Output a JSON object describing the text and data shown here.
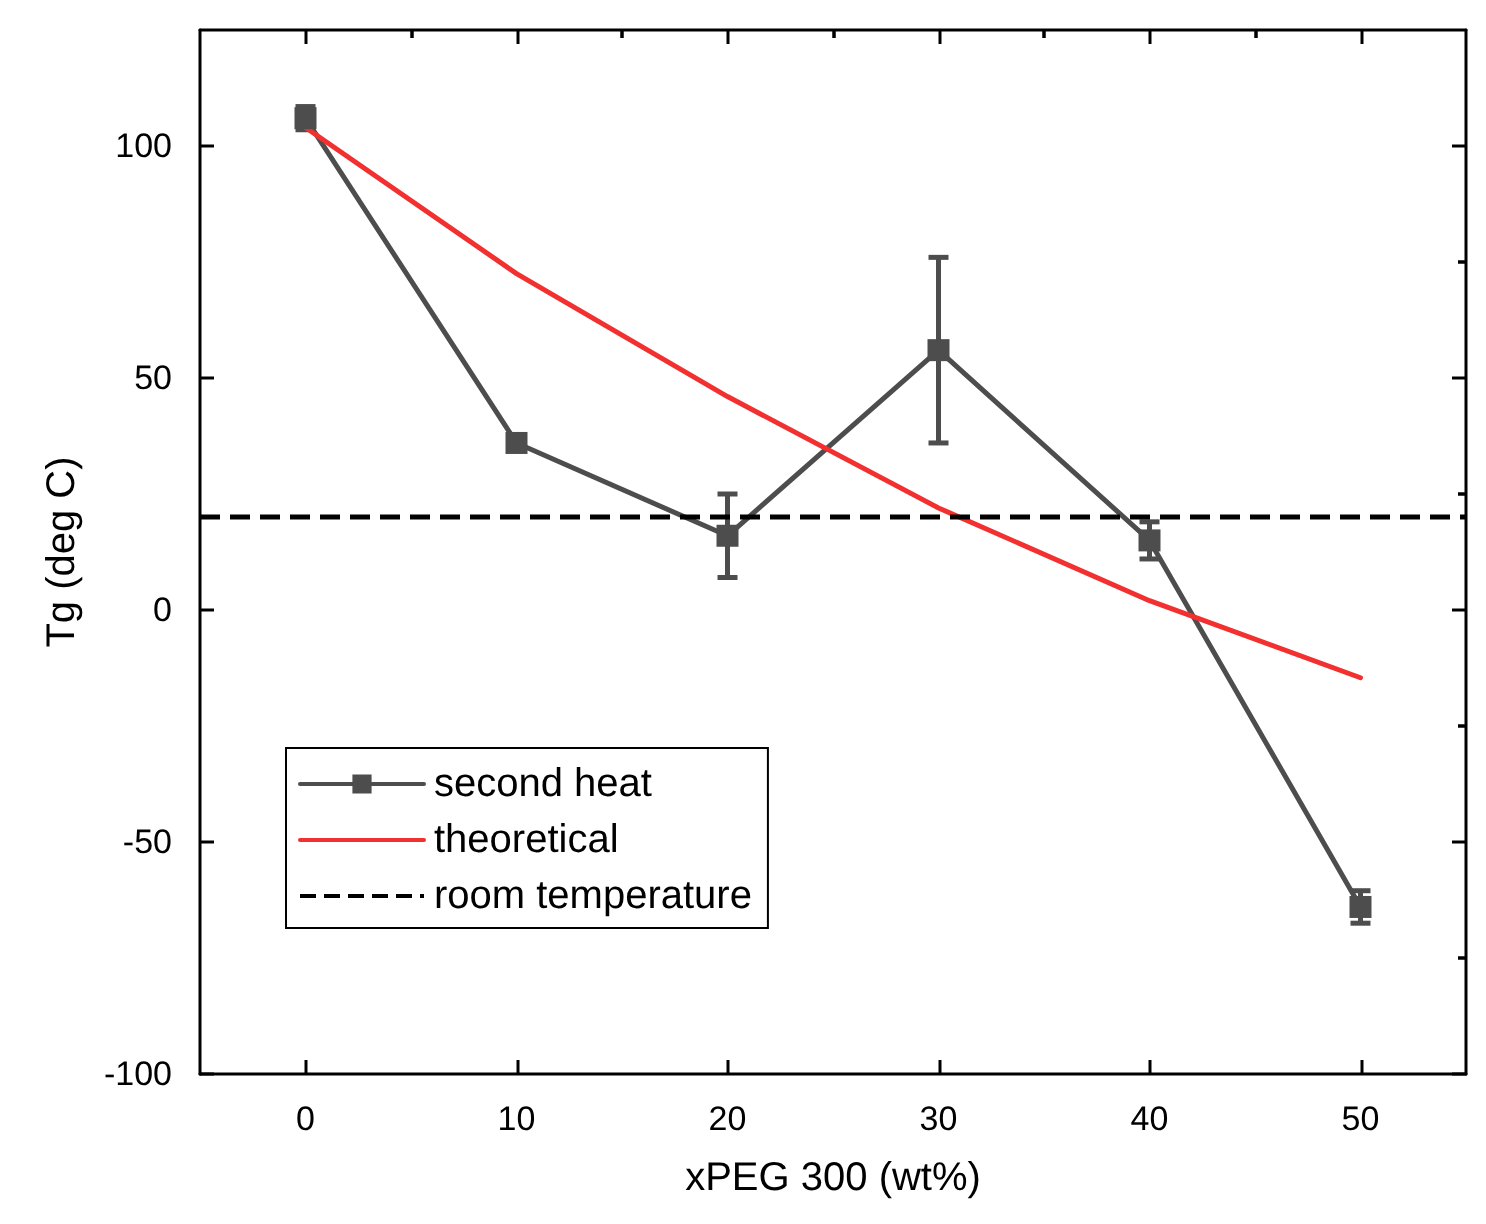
{
  "chart_data": {
    "type": "line",
    "xlabel": "xPEG 300 (wt%)",
    "ylabel": "Tg (deg C)",
    "x": [
      0,
      10,
      20,
      30,
      40,
      50
    ],
    "series": [
      {
        "name": "second heat",
        "color": "#4d4d4d",
        "marker": "square",
        "values": [
          106,
          36,
          16,
          56,
          15,
          -64
        ],
        "errors": [
          2.5,
          null,
          9,
          20,
          4,
          3.5
        ]
      },
      {
        "name": "theoretical",
        "color": "#f23030",
        "marker": "none",
        "values": [
          104,
          72.5,
          46,
          22,
          2,
          -14.6
        ]
      }
    ],
    "ref_lines": [
      {
        "axis": "y",
        "value": 20,
        "label": "room temperature",
        "color": "#000000",
        "line_style": "dashed"
      }
    ],
    "xlim": [
      -5,
      55
    ],
    "ylim": [
      -100,
      125
    ],
    "xticks": [
      0,
      10,
      20,
      30,
      40,
      50
    ],
    "yticks": [
      -100,
      -50,
      0,
      50,
      100
    ],
    "grid": false,
    "legend": "bottom left"
  }
}
